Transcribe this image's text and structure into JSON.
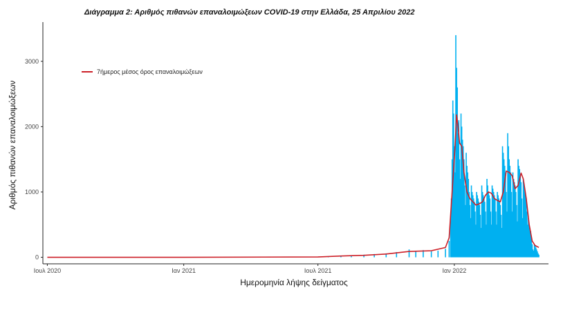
{
  "chart_data": {
    "type": "bar",
    "title": "Διάγραμμα 2: Αριθμός πιθανών επαναλοιμώξεων COVID-19 στην Ελλάδα, 25 Απριλίου 2022",
    "xlabel": "Ημερομηνία λήψης δείγματος",
    "ylabel": "Αριθμός πιθανών επαναλοιμώξεων",
    "x_range": [
      "2020-06-25",
      "2022-05-08"
    ],
    "ylim": [
      -100,
      3600
    ],
    "x_ticks": [
      {
        "date": "2020-07-01",
        "label": "Ιουλ 2020"
      },
      {
        "date": "2021-01-01",
        "label": "Ιαν 2021"
      },
      {
        "date": "2021-07-01",
        "label": "Ιουλ 2021"
      },
      {
        "date": "2022-01-01",
        "label": "Ιαν 2022"
      }
    ],
    "y_ticks": [
      0,
      1000,
      2000,
      3000
    ],
    "grid": false,
    "legend_position": "top-left",
    "series": [
      {
        "name": "",
        "kind": "bar",
        "color": "#00b0f0",
        "points": [
          [
            "2021-07-15",
            15
          ],
          [
            "2021-08-01",
            25
          ],
          [
            "2021-08-15",
            30
          ],
          [
            "2021-09-01",
            40
          ],
          [
            "2021-09-15",
            50
          ],
          [
            "2021-10-01",
            60
          ],
          [
            "2021-10-15",
            80
          ],
          [
            "2021-11-01",
            120
          ],
          [
            "2021-11-10",
            100
          ],
          [
            "2021-11-20",
            110
          ],
          [
            "2021-12-01",
            90
          ],
          [
            "2021-12-10",
            100
          ],
          [
            "2021-12-20",
            130
          ],
          [
            "2021-12-25",
            250
          ],
          [
            "2021-12-27",
            600
          ],
          [
            "2021-12-28",
            900
          ],
          [
            "2021-12-29",
            1500
          ],
          [
            "2021-12-30",
            2400
          ],
          [
            "2021-12-31",
            2200
          ],
          [
            "2022-01-01",
            1700
          ],
          [
            "2022-01-02",
            1300
          ],
          [
            "2022-01-03",
            3400
          ],
          [
            "2022-01-04",
            2900
          ],
          [
            "2022-01-05",
            2600
          ],
          [
            "2022-01-06",
            1900
          ],
          [
            "2022-01-07",
            2100
          ],
          [
            "2022-01-08",
            1500
          ],
          [
            "2022-01-09",
            1200
          ],
          [
            "2022-01-10",
            2200
          ],
          [
            "2022-01-11",
            2000
          ],
          [
            "2022-01-12",
            1800
          ],
          [
            "2022-01-13",
            1700
          ],
          [
            "2022-01-14",
            1500
          ],
          [
            "2022-01-15",
            1100
          ],
          [
            "2022-01-16",
            800
          ],
          [
            "2022-01-17",
            1600
          ],
          [
            "2022-01-18",
            1400
          ],
          [
            "2022-01-19",
            1300
          ],
          [
            "2022-01-20",
            1200
          ],
          [
            "2022-01-21",
            1000
          ],
          [
            "2022-01-22",
            800
          ],
          [
            "2022-01-23",
            600
          ],
          [
            "2022-01-24",
            1100
          ],
          [
            "2022-01-25",
            1000
          ],
          [
            "2022-01-26",
            950
          ],
          [
            "2022-01-27",
            900
          ],
          [
            "2022-01-28",
            850
          ],
          [
            "2022-01-29",
            700
          ],
          [
            "2022-01-30",
            500
          ],
          [
            "2022-01-31",
            1000
          ],
          [
            "2022-02-01",
            950
          ],
          [
            "2022-02-02",
            900
          ],
          [
            "2022-02-03",
            850
          ],
          [
            "2022-02-04",
            800
          ],
          [
            "2022-02-05",
            650
          ],
          [
            "2022-02-06",
            450
          ],
          [
            "2022-02-07",
            1100
          ],
          [
            "2022-02-08",
            1000
          ],
          [
            "2022-02-09",
            950
          ],
          [
            "2022-02-10",
            900
          ],
          [
            "2022-02-11",
            850
          ],
          [
            "2022-02-12",
            700
          ],
          [
            "2022-02-13",
            500
          ],
          [
            "2022-02-14",
            1200
          ],
          [
            "2022-02-15",
            1100
          ],
          [
            "2022-02-16",
            1000
          ],
          [
            "2022-02-17",
            950
          ],
          [
            "2022-02-18",
            900
          ],
          [
            "2022-02-19",
            700
          ],
          [
            "2022-02-20",
            500
          ],
          [
            "2022-02-21",
            1100
          ],
          [
            "2022-02-22",
            1050
          ],
          [
            "2022-02-23",
            1000
          ],
          [
            "2022-02-24",
            950
          ],
          [
            "2022-02-25",
            900
          ],
          [
            "2022-02-26",
            700
          ],
          [
            "2022-02-27",
            500
          ],
          [
            "2022-02-28",
            1000
          ],
          [
            "2022-03-01",
            950
          ],
          [
            "2022-03-02",
            900
          ],
          [
            "2022-03-03",
            850
          ],
          [
            "2022-03-04",
            800
          ],
          [
            "2022-03-05",
            650
          ],
          [
            "2022-03-06",
            450
          ],
          [
            "2022-03-07",
            1700
          ],
          [
            "2022-03-08",
            1600
          ],
          [
            "2022-03-09",
            1500
          ],
          [
            "2022-03-10",
            1400
          ],
          [
            "2022-03-11",
            1300
          ],
          [
            "2022-03-12",
            1000
          ],
          [
            "2022-03-13",
            700
          ],
          [
            "2022-03-14",
            1900
          ],
          [
            "2022-03-15",
            1700
          ],
          [
            "2022-03-16",
            1500
          ],
          [
            "2022-03-17",
            1400
          ],
          [
            "2022-03-18",
            1300
          ],
          [
            "2022-03-19",
            1000
          ],
          [
            "2022-03-20",
            700
          ],
          [
            "2022-03-21",
            1300
          ],
          [
            "2022-03-22",
            1200
          ],
          [
            "2022-03-23",
            1150
          ],
          [
            "2022-03-24",
            1100
          ],
          [
            "2022-03-25",
            1000
          ],
          [
            "2022-03-26",
            800
          ],
          [
            "2022-03-27",
            550
          ],
          [
            "2022-03-28",
            1500
          ],
          [
            "2022-03-29",
            1400
          ],
          [
            "2022-03-30",
            1350
          ],
          [
            "2022-03-31",
            1250
          ],
          [
            "2022-04-01",
            1150
          ],
          [
            "2022-04-02",
            900
          ],
          [
            "2022-04-03",
            600
          ],
          [
            "2022-04-04",
            1200
          ],
          [
            "2022-04-05",
            1100
          ],
          [
            "2022-04-06",
            1000
          ],
          [
            "2022-04-07",
            950
          ],
          [
            "2022-04-08",
            900
          ],
          [
            "2022-04-09",
            700
          ],
          [
            "2022-04-10",
            500
          ],
          [
            "2022-04-11",
            600
          ],
          [
            "2022-04-12",
            500
          ],
          [
            "2022-04-13",
            450
          ],
          [
            "2022-04-14",
            400
          ],
          [
            "2022-04-15",
            300
          ],
          [
            "2022-04-16",
            200
          ],
          [
            "2022-04-17",
            120
          ],
          [
            "2022-04-18",
            100
          ],
          [
            "2022-04-19",
            200
          ],
          [
            "2022-04-20",
            180
          ],
          [
            "2022-04-21",
            150
          ],
          [
            "2022-04-22",
            120
          ],
          [
            "2022-04-23",
            90
          ],
          [
            "2022-04-24",
            60
          ],
          [
            "2022-04-25",
            40
          ]
        ]
      },
      {
        "name": "7ήμερος μέσος όρος επαναλοιμώξεων",
        "kind": "line",
        "color": "#cc1f27",
        "points": [
          [
            "2020-07-01",
            0
          ],
          [
            "2021-01-01",
            0
          ],
          [
            "2021-07-01",
            5
          ],
          [
            "2021-08-01",
            20
          ],
          [
            "2021-09-01",
            30
          ],
          [
            "2021-10-01",
            50
          ],
          [
            "2021-11-01",
            90
          ],
          [
            "2021-12-01",
            100
          ],
          [
            "2021-12-20",
            150
          ],
          [
            "2021-12-25",
            300
          ],
          [
            "2021-12-29",
            1000
          ],
          [
            "2022-01-02",
            1700
          ],
          [
            "2022-01-04",
            2180
          ],
          [
            "2022-01-06",
            2000
          ],
          [
            "2022-01-08",
            1750
          ],
          [
            "2022-01-11",
            1700
          ],
          [
            "2022-01-14",
            1300
          ],
          [
            "2022-01-18",
            1000
          ],
          [
            "2022-01-22",
            900
          ],
          [
            "2022-01-26",
            850
          ],
          [
            "2022-01-30",
            800
          ],
          [
            "2022-02-04",
            820
          ],
          [
            "2022-02-08",
            850
          ],
          [
            "2022-02-12",
            950
          ],
          [
            "2022-02-16",
            1000
          ],
          [
            "2022-02-20",
            980
          ],
          [
            "2022-02-24",
            900
          ],
          [
            "2022-02-28",
            870
          ],
          [
            "2022-03-04",
            850
          ],
          [
            "2022-03-08",
            1000
          ],
          [
            "2022-03-12",
            1320
          ],
          [
            "2022-03-16",
            1300
          ],
          [
            "2022-03-20",
            1250
          ],
          [
            "2022-03-24",
            1050
          ],
          [
            "2022-03-28",
            1100
          ],
          [
            "2022-04-01",
            1290
          ],
          [
            "2022-04-04",
            1200
          ],
          [
            "2022-04-08",
            900
          ],
          [
            "2022-04-12",
            500
          ],
          [
            "2022-04-16",
            250
          ],
          [
            "2022-04-20",
            180
          ],
          [
            "2022-04-25",
            150
          ]
        ]
      }
    ]
  }
}
